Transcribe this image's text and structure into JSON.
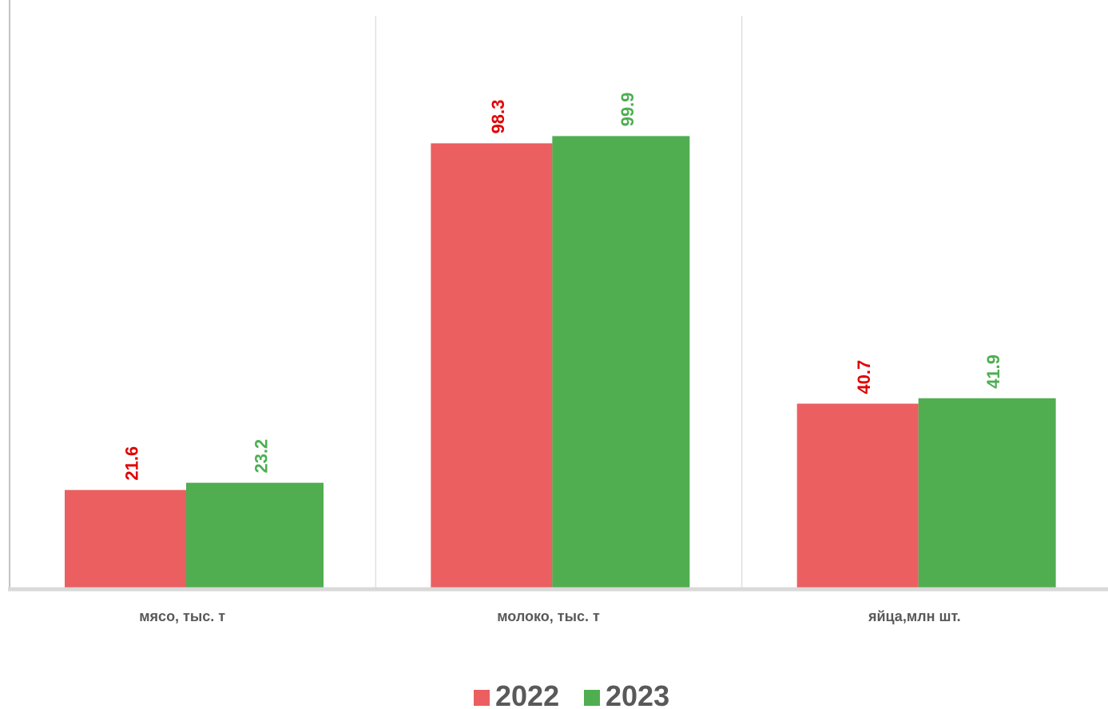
{
  "chart_data": {
    "type": "bar",
    "categories": [
      "мясо, тыс. т",
      "молоко, тыс. т",
      "яйца,млн шт."
    ],
    "series": [
      {
        "name": "2022",
        "values": [
          21.6,
          98.3,
          40.7
        ],
        "color": "#EB5F61",
        "label_color": "#E00000"
      },
      {
        "name": "2023",
        "values": [
          23.2,
          99.9,
          41.9
        ],
        "color": "#50AE50",
        "label_color": "#4CAF50"
      }
    ],
    "ylim": [
      0,
      130
    ],
    "grid": false,
    "legend": "bottom-center",
    "data_labels": true
  }
}
